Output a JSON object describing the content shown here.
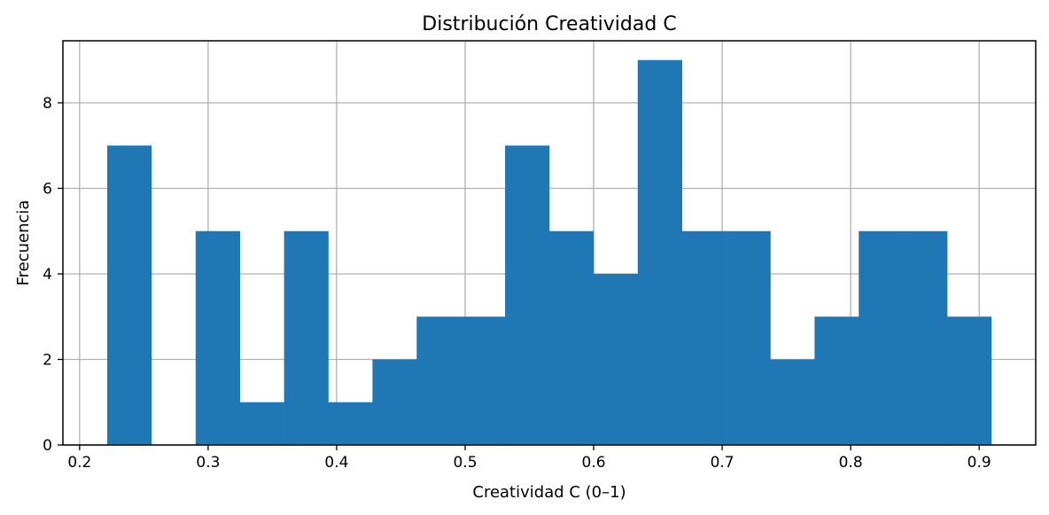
{
  "chart_data": {
    "type": "bar",
    "title": "Distribución Creatividad C",
    "xlabel": "Creatividad C (0–1)",
    "ylabel": "Frecuencia",
    "xlim": [
      0.187,
      0.944
    ],
    "ylim": [
      0,
      9.45
    ],
    "xticks": [
      0.2,
      0.3,
      0.4,
      0.5,
      0.6,
      0.7,
      0.8,
      0.9
    ],
    "xtick_labels": [
      "0.2",
      "0.3",
      "0.4",
      "0.5",
      "0.6",
      "0.7",
      "0.8",
      "0.9"
    ],
    "yticks": [
      0,
      2,
      4,
      6,
      8
    ],
    "ytick_labels": [
      "0",
      "2",
      "4",
      "6",
      "8"
    ],
    "grid": true,
    "bar_color": "#1f77b4",
    "bins": [
      {
        "x0": 0.2215,
        "x1": 0.2559,
        "count": 7
      },
      {
        "x0": 0.2559,
        "x1": 0.2903,
        "count": 0
      },
      {
        "x0": 0.2903,
        "x1": 0.3247,
        "count": 5
      },
      {
        "x0": 0.3247,
        "x1": 0.3591,
        "count": 1
      },
      {
        "x0": 0.3591,
        "x1": 0.3935,
        "count": 5
      },
      {
        "x0": 0.3935,
        "x1": 0.4279,
        "count": 1
      },
      {
        "x0": 0.4279,
        "x1": 0.4623,
        "count": 2
      },
      {
        "x0": 0.4623,
        "x1": 0.4967,
        "count": 3
      },
      {
        "x0": 0.4967,
        "x1": 0.5311,
        "count": 3
      },
      {
        "x0": 0.5311,
        "x1": 0.5655,
        "count": 7
      },
      {
        "x0": 0.5655,
        "x1": 0.5999,
        "count": 5
      },
      {
        "x0": 0.5999,
        "x1": 0.6343,
        "count": 4
      },
      {
        "x0": 0.6343,
        "x1": 0.6687,
        "count": 9
      },
      {
        "x0": 0.6687,
        "x1": 0.7031,
        "count": 5
      },
      {
        "x0": 0.7031,
        "x1": 0.7375,
        "count": 5
      },
      {
        "x0": 0.7375,
        "x1": 0.7719,
        "count": 2
      },
      {
        "x0": 0.7719,
        "x1": 0.8063,
        "count": 3
      },
      {
        "x0": 0.8063,
        "x1": 0.8407,
        "count": 5
      },
      {
        "x0": 0.8407,
        "x1": 0.8751,
        "count": 5
      },
      {
        "x0": 0.8751,
        "x1": 0.9095,
        "count": 3
      }
    ]
  }
}
